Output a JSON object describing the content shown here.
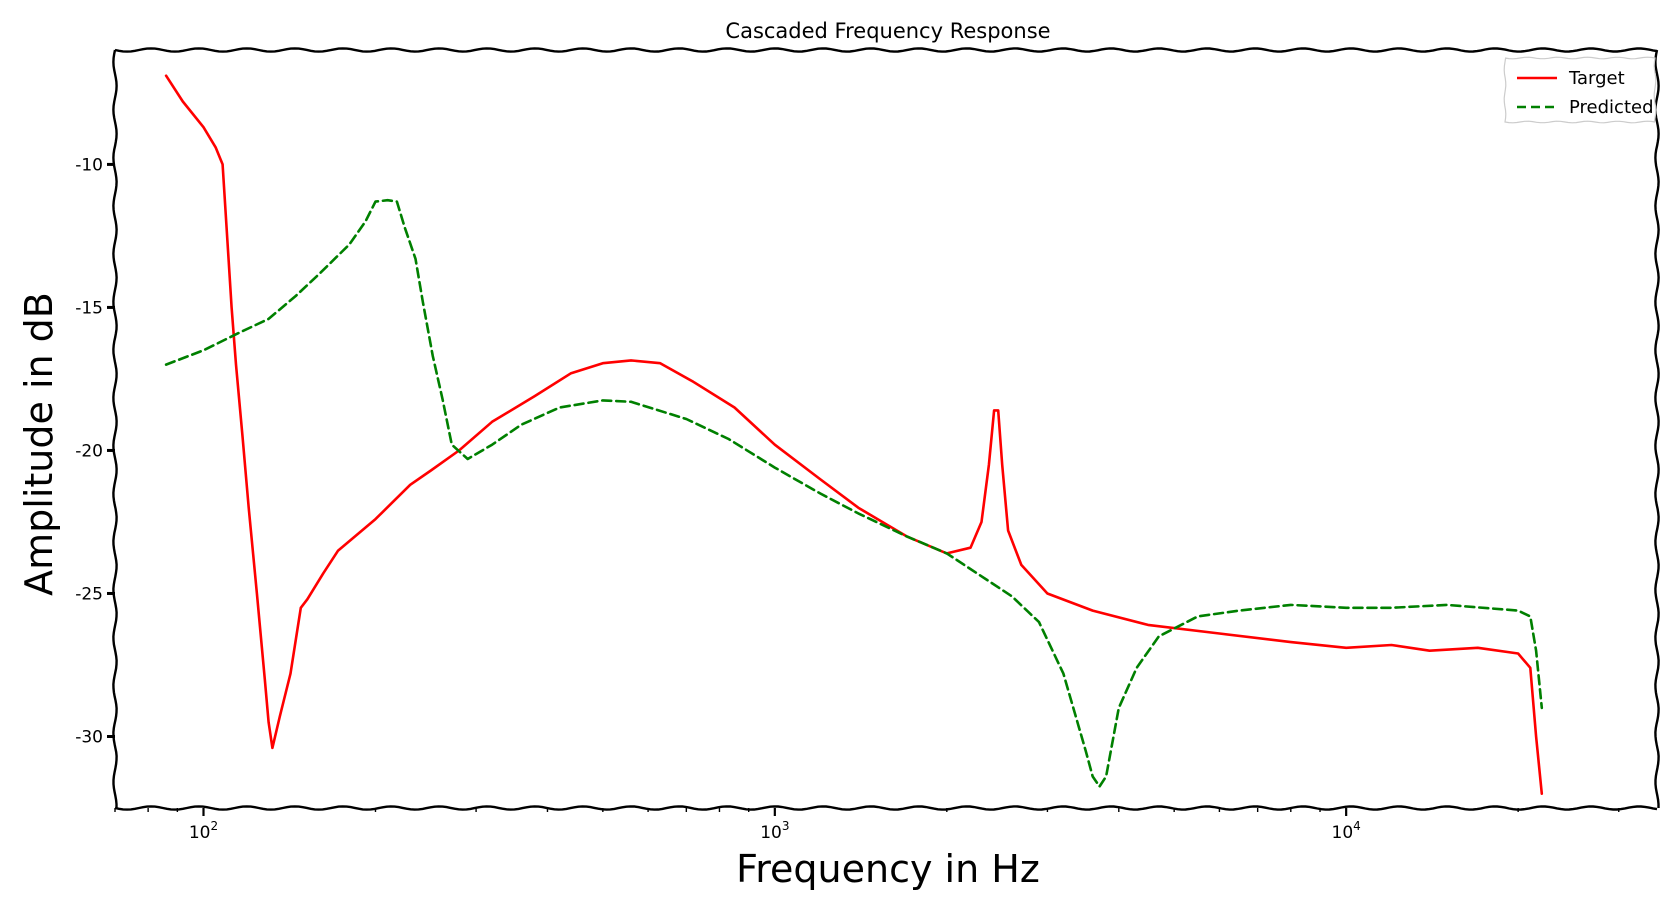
{
  "chart_data": {
    "type": "line",
    "title": "Cascaded Frequency Response",
    "xlabel": "Frequency in Hz",
    "ylabel": "Amplitude in dB",
    "xscale": "log",
    "xlim": [
      70,
      35000
    ],
    "ylim": [
      -32.5,
      -6
    ],
    "x_ticks": [
      {
        "value": 100,
        "base": "10",
        "exp": "2"
      },
      {
        "value": 1000,
        "base": "10",
        "exp": "3"
      },
      {
        "value": 10000,
        "base": "10",
        "exp": "4"
      }
    ],
    "y_ticks": [
      {
        "value": -10,
        "label": "-10"
      },
      {
        "value": -15,
        "label": "-15"
      },
      {
        "value": -20,
        "label": "-20"
      },
      {
        "value": -25,
        "label": "-25"
      },
      {
        "value": -30,
        "label": "-30"
      }
    ],
    "grid": false,
    "legend_position": "top-right",
    "series": [
      {
        "name": "Target",
        "color": "#ff0000",
        "dash": "solid",
        "points": [
          [
            86,
            -6.9
          ],
          [
            92,
            -7.8
          ],
          [
            100,
            -8.7
          ],
          [
            105,
            -9.4
          ],
          [
            108,
            -10.0
          ],
          [
            110,
            -12.5
          ],
          [
            112,
            -15.0
          ],
          [
            114,
            -17.0
          ],
          [
            117,
            -19.5
          ],
          [
            120,
            -22.0
          ],
          [
            124,
            -25.0
          ],
          [
            128,
            -28.0
          ],
          [
            130,
            -29.5
          ],
          [
            132,
            -30.4
          ],
          [
            136,
            -29.3
          ],
          [
            142,
            -27.8
          ],
          [
            148,
            -25.5
          ],
          [
            152,
            -25.2
          ],
          [
            162,
            -24.3
          ],
          [
            172,
            -23.5
          ],
          [
            200,
            -22.4
          ],
          [
            230,
            -21.2
          ],
          [
            250,
            -20.7
          ],
          [
            280,
            -20.0
          ],
          [
            320,
            -19.0
          ],
          [
            380,
            -18.1
          ],
          [
            440,
            -17.3
          ],
          [
            500,
            -16.95
          ],
          [
            560,
            -16.85
          ],
          [
            630,
            -16.95
          ],
          [
            720,
            -17.6
          ],
          [
            850,
            -18.5
          ],
          [
            1000,
            -19.8
          ],
          [
            1200,
            -21.0
          ],
          [
            1400,
            -22.0
          ],
          [
            1700,
            -23.0
          ],
          [
            2000,
            -23.6
          ],
          [
            2200,
            -23.4
          ],
          [
            2300,
            -22.5
          ],
          [
            2370,
            -20.5
          ],
          [
            2420,
            -18.6
          ],
          [
            2460,
            -18.6
          ],
          [
            2500,
            -20.5
          ],
          [
            2560,
            -22.8
          ],
          [
            2700,
            -24.0
          ],
          [
            3000,
            -25.0
          ],
          [
            3600,
            -25.6
          ],
          [
            4500,
            -26.1
          ],
          [
            6000,
            -26.4
          ],
          [
            8000,
            -26.7
          ],
          [
            10000,
            -26.9
          ],
          [
            12000,
            -26.8
          ],
          [
            14000,
            -27.0
          ],
          [
            17000,
            -26.9
          ],
          [
            20000,
            -27.1
          ],
          [
            21000,
            -27.6
          ],
          [
            21500,
            -30.0
          ],
          [
            22000,
            -32.0
          ]
        ]
      },
      {
        "name": "Predicted",
        "color": "#008000",
        "dash": "dashed",
        "points": [
          [
            86,
            -17.0
          ],
          [
            100,
            -16.5
          ],
          [
            115,
            -15.9
          ],
          [
            130,
            -15.4
          ],
          [
            145,
            -14.6
          ],
          [
            160,
            -13.8
          ],
          [
            180,
            -12.8
          ],
          [
            192,
            -12.0
          ],
          [
            200,
            -11.3
          ],
          [
            210,
            -11.25
          ],
          [
            218,
            -11.3
          ],
          [
            225,
            -12.2
          ],
          [
            235,
            -13.3
          ],
          [
            242,
            -14.8
          ],
          [
            252,
            -16.7
          ],
          [
            262,
            -18.2
          ],
          [
            272,
            -19.8
          ],
          [
            290,
            -20.3
          ],
          [
            320,
            -19.8
          ],
          [
            360,
            -19.1
          ],
          [
            420,
            -18.5
          ],
          [
            500,
            -18.25
          ],
          [
            560,
            -18.3
          ],
          [
            700,
            -18.9
          ],
          [
            830,
            -19.6
          ],
          [
            1000,
            -20.6
          ],
          [
            1200,
            -21.5
          ],
          [
            1400,
            -22.2
          ],
          [
            1700,
            -23.0
          ],
          [
            2000,
            -23.6
          ],
          [
            2300,
            -24.4
          ],
          [
            2600,
            -25.1
          ],
          [
            2900,
            -26.0
          ],
          [
            3200,
            -27.8
          ],
          [
            3500,
            -30.5
          ],
          [
            3600,
            -31.4
          ],
          [
            3700,
            -31.75
          ],
          [
            3800,
            -31.4
          ],
          [
            4000,
            -29.0
          ],
          [
            4300,
            -27.6
          ],
          [
            4700,
            -26.5
          ],
          [
            5500,
            -25.8
          ],
          [
            6500,
            -25.6
          ],
          [
            8000,
            -25.4
          ],
          [
            10000,
            -25.5
          ],
          [
            12000,
            -25.5
          ],
          [
            15000,
            -25.4
          ],
          [
            20000,
            -25.6
          ],
          [
            21000,
            -25.8
          ],
          [
            21500,
            -27.0
          ],
          [
            22000,
            -29.0
          ]
        ]
      }
    ]
  }
}
